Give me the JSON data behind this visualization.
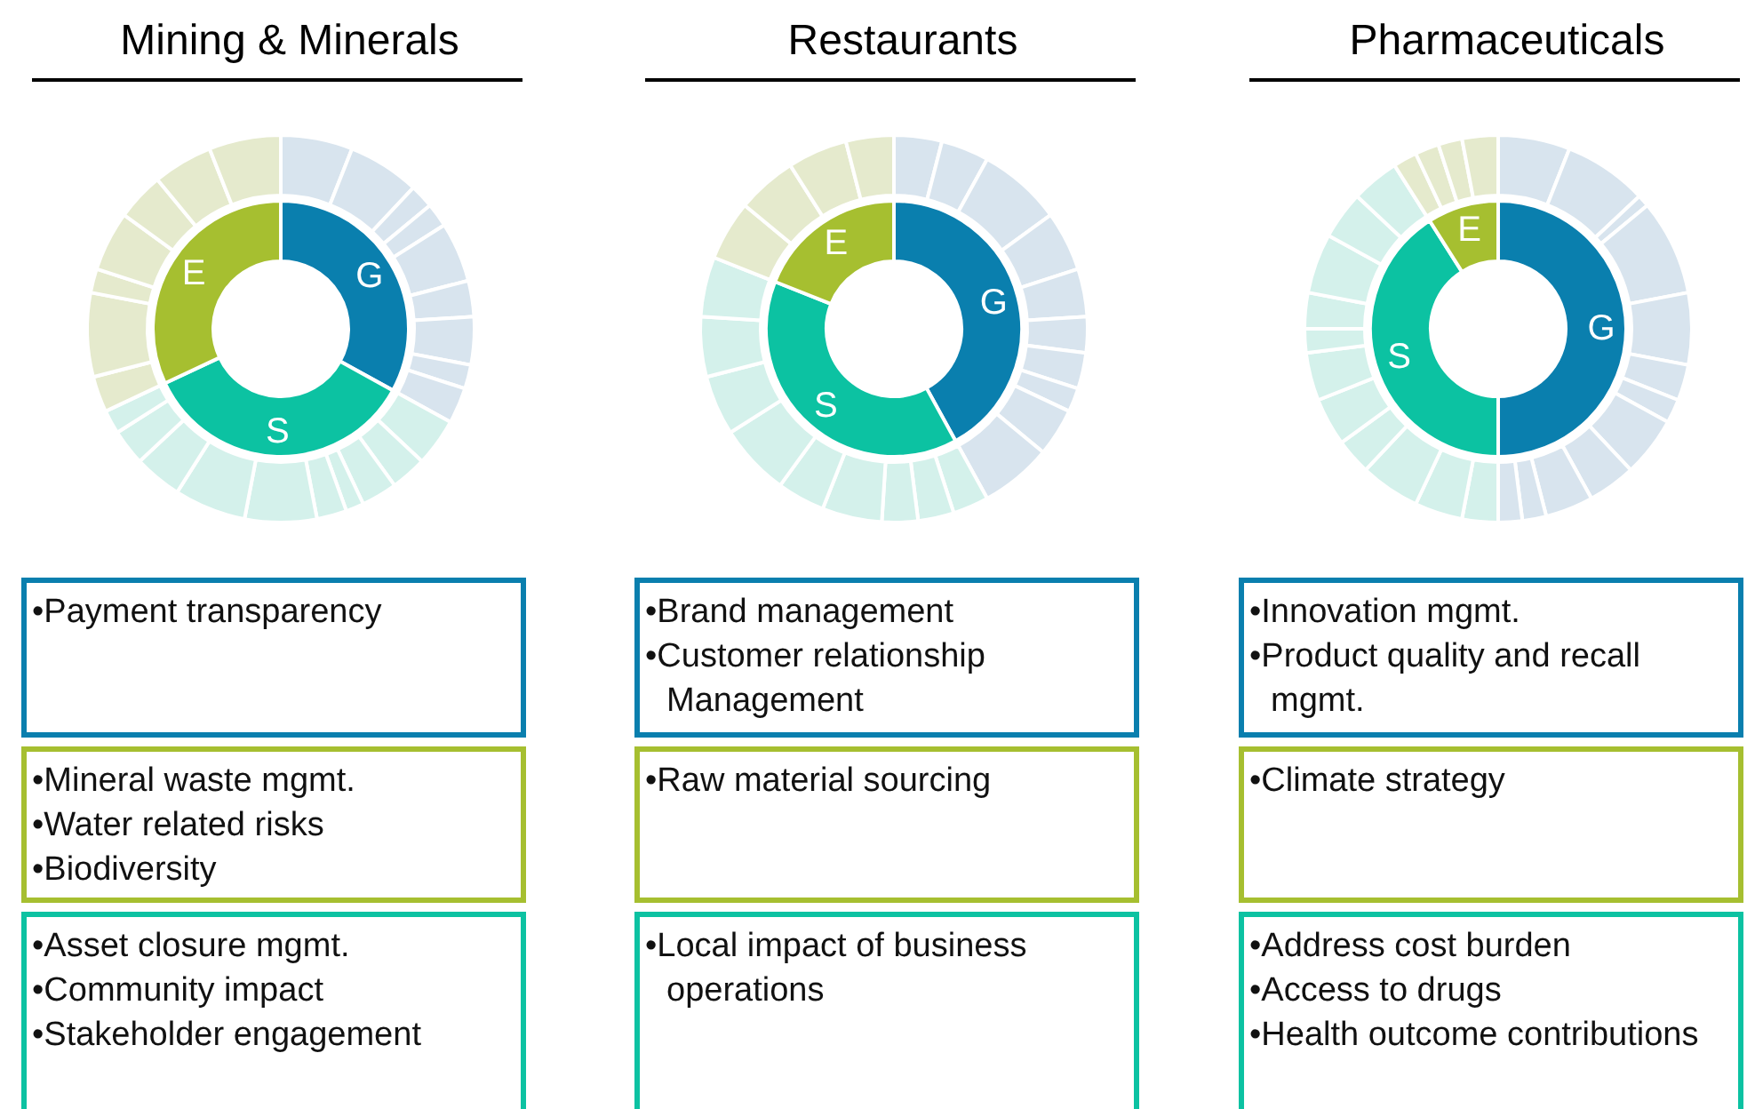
{
  "chart_data": [
    {
      "type": "donut",
      "title": "Mining & Minerals",
      "categories": [
        "G",
        "S",
        "E"
      ],
      "values": [
        33,
        35,
        32
      ],
      "colors": [
        "#0a7fae",
        "#0cc2a2",
        "#a6bf30"
      ],
      "annotations": [
        "•Payment transparency",
        "•Mineral waste mgmt.\n•Water related risks\n•Biodiversity",
        "•Asset closure mgmt.\n•Community impact\n•Stakeholder engagement"
      ]
    },
    {
      "type": "donut",
      "categories": [
        null,
        null,
        null,
        null,
        null,
        null,
        null,
        null,
        null,
        null,
        null,
        null,
        null,
        null,
        null,
        null,
        null,
        null,
        null,
        null,
        null,
        null,
        null,
        null,
        null,
        null
      ],
      "values": [
        6,
        6,
        2,
        2,
        5,
        3,
        4,
        2,
        3,
        4,
        3,
        3,
        1.5,
        2.5,
        6,
        6,
        4,
        3,
        2,
        3,
        7,
        2,
        5,
        4,
        5,
        6
      ],
      "colors": [
        "#d8e4ee",
        "#d8e4ee",
        "#d8e4ee",
        "#d8e4ee",
        "#d8e4ee",
        "#d8e4ee",
        "#d8e4ee",
        "#d8e4ee",
        "#d8e4ee",
        "#d4f1eb",
        "#d4f1eb",
        "#d4f1eb",
        "#d4f1eb",
        "#d4f1eb",
        "#d4f1eb",
        "#d4f1eb",
        "#d4f1eb",
        "#d4f1eb",
        "#d4f1eb",
        "#e5eacd",
        "#e5eacd",
        "#e5eacd",
        "#e5eacd",
        "#e5eacd",
        "#e5eacd",
        "#e5eacd"
      ]
    },
    {
      "type": "donut",
      "title": "Restaurants",
      "categories": [
        "G",
        "S",
        "E"
      ],
      "values": [
        42,
        39,
        19
      ],
      "colors": [
        "#0a7fae",
        "#0cc2a2",
        "#a6bf30"
      ],
      "annotations": [
        "•Brand management\n•Customer relationship Management",
        "•Raw material sourcing",
        "•Local impact of business operations"
      ]
    },
    {
      "type": "donut",
      "categories": [
        null,
        null,
        null,
        null,
        null,
        null,
        null,
        null,
        null,
        null,
        null,
        null,
        null,
        null,
        null,
        null,
        null,
        null,
        null,
        null,
        null,
        null,
        null
      ],
      "values": [
        4,
        4,
        7,
        5,
        4,
        3,
        3,
        2,
        4,
        6,
        3,
        3,
        3,
        5,
        4,
        6,
        5,
        5,
        5,
        5,
        5,
        5,
        4
      ],
      "colors": [
        "#d8e4ee",
        "#d8e4ee",
        "#d8e4ee",
        "#d8e4ee",
        "#d8e4ee",
        "#d8e4ee",
        "#d8e4ee",
        "#d8e4ee",
        "#d8e4ee",
        "#d8e4ee",
        "#d4f1eb",
        "#d4f1eb",
        "#d4f1eb",
        "#d4f1eb",
        "#d4f1eb",
        "#d4f1eb",
        "#d4f1eb",
        "#d4f1eb",
        "#d4f1eb",
        "#e5eacd",
        "#e5eacd",
        "#e5eacd",
        "#e5eacd"
      ]
    },
    {
      "type": "donut",
      "title": "Pharmaceuticals",
      "categories": [
        "G",
        "S",
        "E"
      ],
      "values": [
        50,
        41,
        9
      ],
      "colors": [
        "#0a7fae",
        "#0cc2a2",
        "#a6bf30"
      ],
      "annotations": [
        "•Innovation mgmt.\n•Product quality and recall mgmt.",
        "•Climate strategy",
        "•Address cost burden\n•Access to drugs\n•Health outcome contributions"
      ]
    },
    {
      "type": "donut",
      "categories": [
        null,
        null,
        null,
        null,
        null,
        null,
        null,
        null,
        null,
        null,
        null,
        null,
        null,
        null,
        null,
        null,
        null,
        null,
        null,
        null,
        null,
        null,
        null,
        null,
        null,
        null,
        null
      ],
      "values": [
        6,
        7,
        1,
        8,
        6,
        3,
        2,
        5,
        4,
        4,
        2,
        2,
        3,
        4,
        5,
        3,
        4,
        4,
        2,
        3,
        5,
        4,
        4,
        2,
        2,
        2,
        3
      ],
      "colors": [
        "#d8e4ee",
        "#d8e4ee",
        "#d8e4ee",
        "#d8e4ee",
        "#d8e4ee",
        "#d8e4ee",
        "#d8e4ee",
        "#d8e4ee",
        "#d8e4ee",
        "#d8e4ee",
        "#d8e4ee",
        "#d8e4ee",
        "#d4f1eb",
        "#d4f1eb",
        "#d4f1eb",
        "#d4f1eb",
        "#d4f1eb",
        "#d4f1eb",
        "#d4f1eb",
        "#d4f1eb",
        "#d4f1eb",
        "#d4f1eb",
        "#d4f1eb",
        "#e5eacd",
        "#e5eacd",
        "#e5eacd",
        "#e5eacd"
      ]
    }
  ]
}
